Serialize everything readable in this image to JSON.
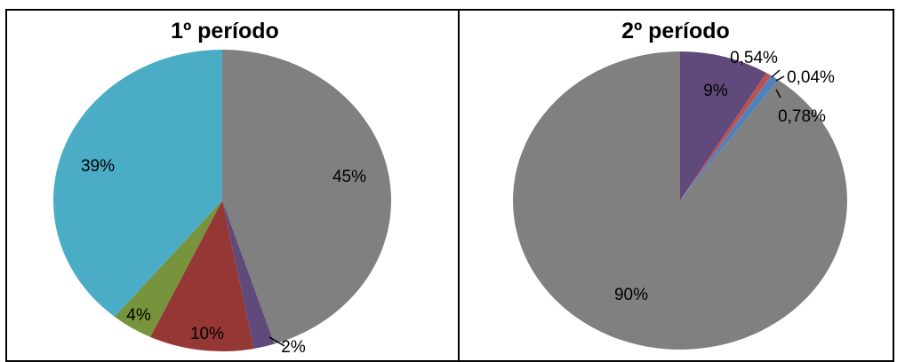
{
  "chart_data": [
    {
      "type": "pie",
      "title": "1º período",
      "slices": [
        {
          "label": "45%",
          "value": 45,
          "color": "#808080"
        },
        {
          "label": "2%",
          "value": 2,
          "color": "#604A7B"
        },
        {
          "label": "10%",
          "value": 10,
          "color": "#953735"
        },
        {
          "label": "4%",
          "value": 4,
          "color": "#77933C"
        },
        {
          "label": "39%",
          "value": 39,
          "color": "#4BACC6"
        }
      ]
    },
    {
      "type": "pie",
      "title": "2º período",
      "slices": [
        {
          "label": "9%",
          "value": 8.64,
          "color": "#604A7B"
        },
        {
          "label": "0,54%",
          "value": 0.54,
          "color": "#C0504D"
        },
        {
          "label": "0,04%",
          "value": 0.04,
          "color": "#2E75B6"
        },
        {
          "label": "0,78%",
          "value": 0.78,
          "color": "#4F81BD"
        },
        {
          "label": "90%",
          "value": 90,
          "color": "#808080"
        }
      ]
    }
  ]
}
